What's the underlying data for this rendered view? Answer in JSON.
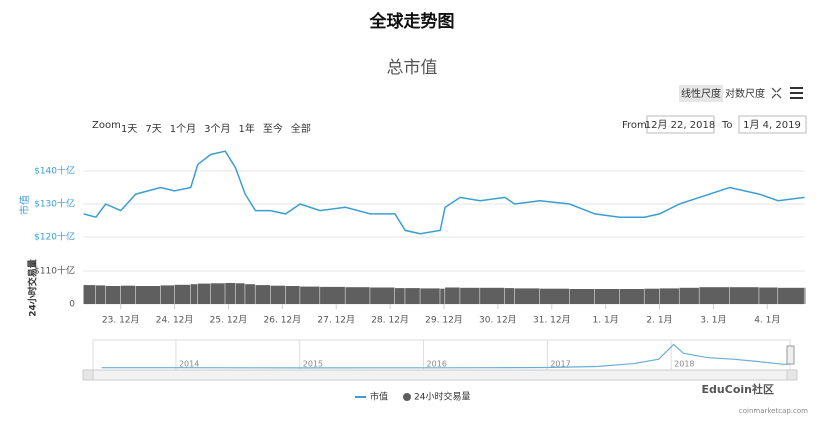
{
  "header": {
    "title": "全球走势图"
  },
  "toolbar": {
    "scales": [
      "线性尺度",
      "对数尺度"
    ],
    "zoom_label": "Zoom",
    "zoom_buttons": [
      "1天",
      "7天",
      "1个月",
      "3个月",
      "1年",
      "至今",
      "全部"
    ],
    "from_label": "From",
    "from": "12月 22, 2018",
    "to_label": "To",
    "to": "1月 4, 2019"
  },
  "watermark": {
    "brand": "EduCoin社区",
    "source": "coinmarketcap.com"
  },
  "chart_data": [
    {
      "type": "line",
      "title": "总市值",
      "y_label": "市值",
      "x": [
        0.31,
        0.54,
        0.72,
        1.0,
        1.28,
        1.74,
        2.0,
        2.3,
        2.43,
        2.67,
        2.94,
        3.13,
        3.31,
        3.5,
        3.78,
        4.06,
        4.33,
        4.7,
        5.17,
        5.63,
        6.09,
        6.28,
        6.56,
        6.93,
        7.02,
        7.3,
        7.67,
        8.13,
        8.31,
        8.78,
        9.33,
        9.8,
        10.26,
        10.72,
        11.0,
        11.37,
        11.74,
        12.3,
        12.85,
        13.2,
        13.69
      ],
      "xlim": [
        0.3,
        13.7
      ],
      "xticks": [
        {
          "value": 1,
          "label": "23. 12月"
        },
        {
          "value": 2,
          "label": "24. 12月"
        },
        {
          "value": 3,
          "label": "25. 12月"
        },
        {
          "value": 4,
          "label": "26. 12月"
        },
        {
          "value": 5,
          "label": "27. 12月"
        },
        {
          "value": 6,
          "label": "28. 12月"
        },
        {
          "value": 7,
          "label": "29. 12月"
        },
        {
          "value": 8,
          "label": "30. 12月"
        },
        {
          "value": 9,
          "label": "31. 12月"
        },
        {
          "value": 10,
          "label": "1. 1月"
        },
        {
          "value": 11,
          "label": "2. 1月"
        },
        {
          "value": 12,
          "label": "3. 1月"
        },
        {
          "value": 13,
          "label": "4. 1月"
        }
      ],
      "series": [
        {
          "name": "市值",
          "color": "#3a9fd0",
          "values": [
            127,
            126,
            130,
            128,
            133,
            135,
            134,
            135,
            142,
            145,
            146,
            141,
            133,
            128,
            128,
            127,
            130,
            128,
            129,
            127,
            127,
            122,
            121,
            122,
            129,
            132,
            131,
            132,
            130,
            131,
            130,
            127,
            126,
            126,
            127,
            130,
            132,
            135,
            133,
            131,
            132
          ]
        }
      ],
      "ylim": [
        115,
        150
      ],
      "yticks": [
        {
          "value": 120,
          "label": "$120十亿"
        },
        {
          "value": 130,
          "label": "$130十亿"
        },
        {
          "value": 140,
          "label": "$140十亿"
        }
      ],
      "grid": true
    },
    {
      "type": "bar",
      "y_label": "24小时交易量",
      "series": [
        {
          "name": "24小时交易量",
          "color": "#5f5f5f",
          "values": [
            63,
            62,
            60,
            61,
            60,
            62,
            64,
            66,
            68,
            69,
            70,
            69,
            66,
            63,
            61,
            60,
            58,
            57,
            56,
            55,
            53,
            53,
            52,
            51,
            55,
            54,
            54,
            53,
            52,
            51,
            50,
            50,
            50,
            51,
            52,
            54,
            56,
            56,
            55,
            54,
            54
          ]
        }
      ],
      "ylim": [
        0,
        110
      ],
      "yticks": [
        0,
        {
          "value": 110,
          "label": "$110十亿"
        }
      ]
    },
    {
      "type": "area",
      "x": [
        2013.4,
        2014,
        2015,
        2016,
        2016.6,
        2017,
        2017.4,
        2017.7,
        2017.9,
        2018.02,
        2018.1,
        2018.3,
        2018.5,
        2018.7,
        2018.9,
        2018.96
      ],
      "xlim": [
        2013.33,
        2018.96
      ],
      "xticks": [
        2014,
        2015,
        2016,
        2017,
        2018
      ],
      "series": [
        {
          "color": "#6aaed6",
          "values": [
            10,
            10,
            5,
            7,
            10,
            18,
            50,
            150,
            300,
            800,
            500,
            350,
            300,
            220,
            130,
            128
          ]
        }
      ],
      "ylim": [
        0,
        850
      ]
    }
  ]
}
